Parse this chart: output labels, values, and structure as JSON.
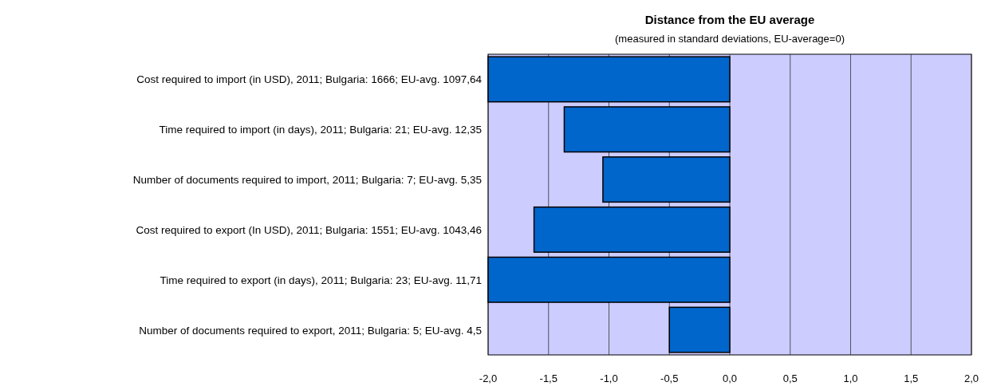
{
  "chart_data": {
    "type": "bar",
    "orientation": "horizontal",
    "title": "Distance from the EU average",
    "subtitle": "(measured in standard deviations, EU-average=0)",
    "categories": [
      "Cost required to import (in USD), 2011; Bulgaria: 1666; EU-avg. 1097,64",
      "Time required to import (in days), 2011; Bulgaria: 21; EU-avg. 12,35",
      "Number of documents required to import, 2011; Bulgaria: 7; EU-avg. 5,35",
      "Cost required to export (In USD), 2011; Bulgaria: 1551; EU-avg. 1043,46",
      "Time required to export (in days), 2011; Bulgaria: 23; EU-avg. 11,71",
      "Number of documents required to export, 2011; Bulgaria: 5; EU-avg. 4,5"
    ],
    "values": [
      -2.0,
      -1.37,
      -1.05,
      -1.62,
      -2.0,
      -0.5
    ],
    "color": "#0066cc",
    "xlim": [
      -2,
      2
    ],
    "xticks": [
      {
        "value": -2,
        "label": "-2,0"
      },
      {
        "value": -1.5,
        "label": "-1,5"
      },
      {
        "value": -1,
        "label": "-1,0"
      },
      {
        "value": -0.5,
        "label": "-0,5"
      },
      {
        "value": 0,
        "label": "0,0"
      },
      {
        "value": 0.5,
        "label": "0,5"
      },
      {
        "value": 1,
        "label": "1,0"
      },
      {
        "value": 1.5,
        "label": "1,5"
      },
      {
        "value": 2,
        "label": "2,0"
      }
    ],
    "grid": "x"
  }
}
